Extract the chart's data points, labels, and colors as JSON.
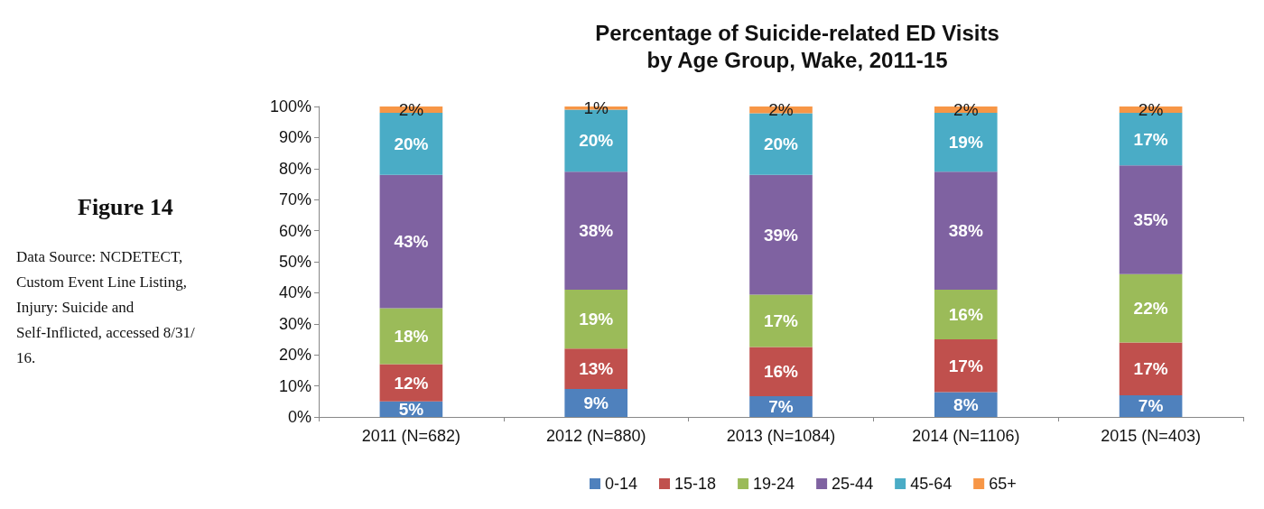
{
  "chart_data": {
    "type": "bar",
    "stacked": true,
    "title": "Percentage of Suicide-related ED Visits\nby Age Group, Wake, 2011-15",
    "categories": [
      "2011 (N=682)",
      "2012 (N=880)",
      "2013 (N=1084)",
      "2014 (N=1106)",
      "2015 (N=403)"
    ],
    "series": [
      {
        "name": "0-14",
        "color": "#4f81bd",
        "values": [
          5,
          9,
          6.7,
          8,
          7
        ],
        "value_labels": [
          "5%",
          "9%",
          "7%",
          "8%",
          "7%"
        ]
      },
      {
        "name": "15-18",
        "color": "#c0504d",
        "values": [
          12,
          13,
          15.8,
          17,
          17
        ],
        "value_labels": [
          "12%",
          "13%",
          "16%",
          "17%",
          "17%"
        ]
      },
      {
        "name": "19-24",
        "color": "#9bbb59",
        "values": [
          18,
          19,
          16.9,
          16,
          22
        ],
        "value_labels": [
          "18%",
          "19%",
          "17%",
          "16%",
          "22%"
        ]
      },
      {
        "name": "25-44",
        "color": "#7f62a1",
        "values": [
          43,
          38,
          38.6,
          38,
          35
        ],
        "value_labels": [
          "43%",
          "38%",
          "39%",
          "38%",
          "35%"
        ]
      },
      {
        "name": "45-64",
        "color": "#4aacc6",
        "values": [
          20,
          20,
          19.8,
          19,
          17
        ],
        "value_labels": [
          "20%",
          "20%",
          "20%",
          "19%",
          "17%"
        ]
      },
      {
        "name": "65+",
        "color": "#f79646",
        "values": [
          2,
          1,
          2.2,
          2,
          2
        ],
        "value_labels": [
          "2%",
          "1%",
          "2%",
          "2%",
          "2%"
        ]
      }
    ],
    "ylim": [
      0,
      100
    ],
    "yticks": [
      {
        "value": 0,
        "label": "0%"
      },
      {
        "value": 10,
        "label": "10%"
      },
      {
        "value": 20,
        "label": "20%"
      },
      {
        "value": 30,
        "label": "30%"
      },
      {
        "value": 40,
        "label": "40%"
      },
      {
        "value": 50,
        "label": "50%"
      },
      {
        "value": 60,
        "label": "60%"
      },
      {
        "value": 70,
        "label": "70%"
      },
      {
        "value": 80,
        "label": "80%"
      },
      {
        "value": 90,
        "label": "90%"
      },
      {
        "value": 100,
        "label": "100%"
      }
    ],
    "grid": false,
    "legend": "bottom",
    "annotations": [
      "Figure 14",
      "Data Source: NCDETECT, Custom Event Line Listing, Injury: Suicide and Self-Inflicted, accessed 8/31/16."
    ]
  }
}
